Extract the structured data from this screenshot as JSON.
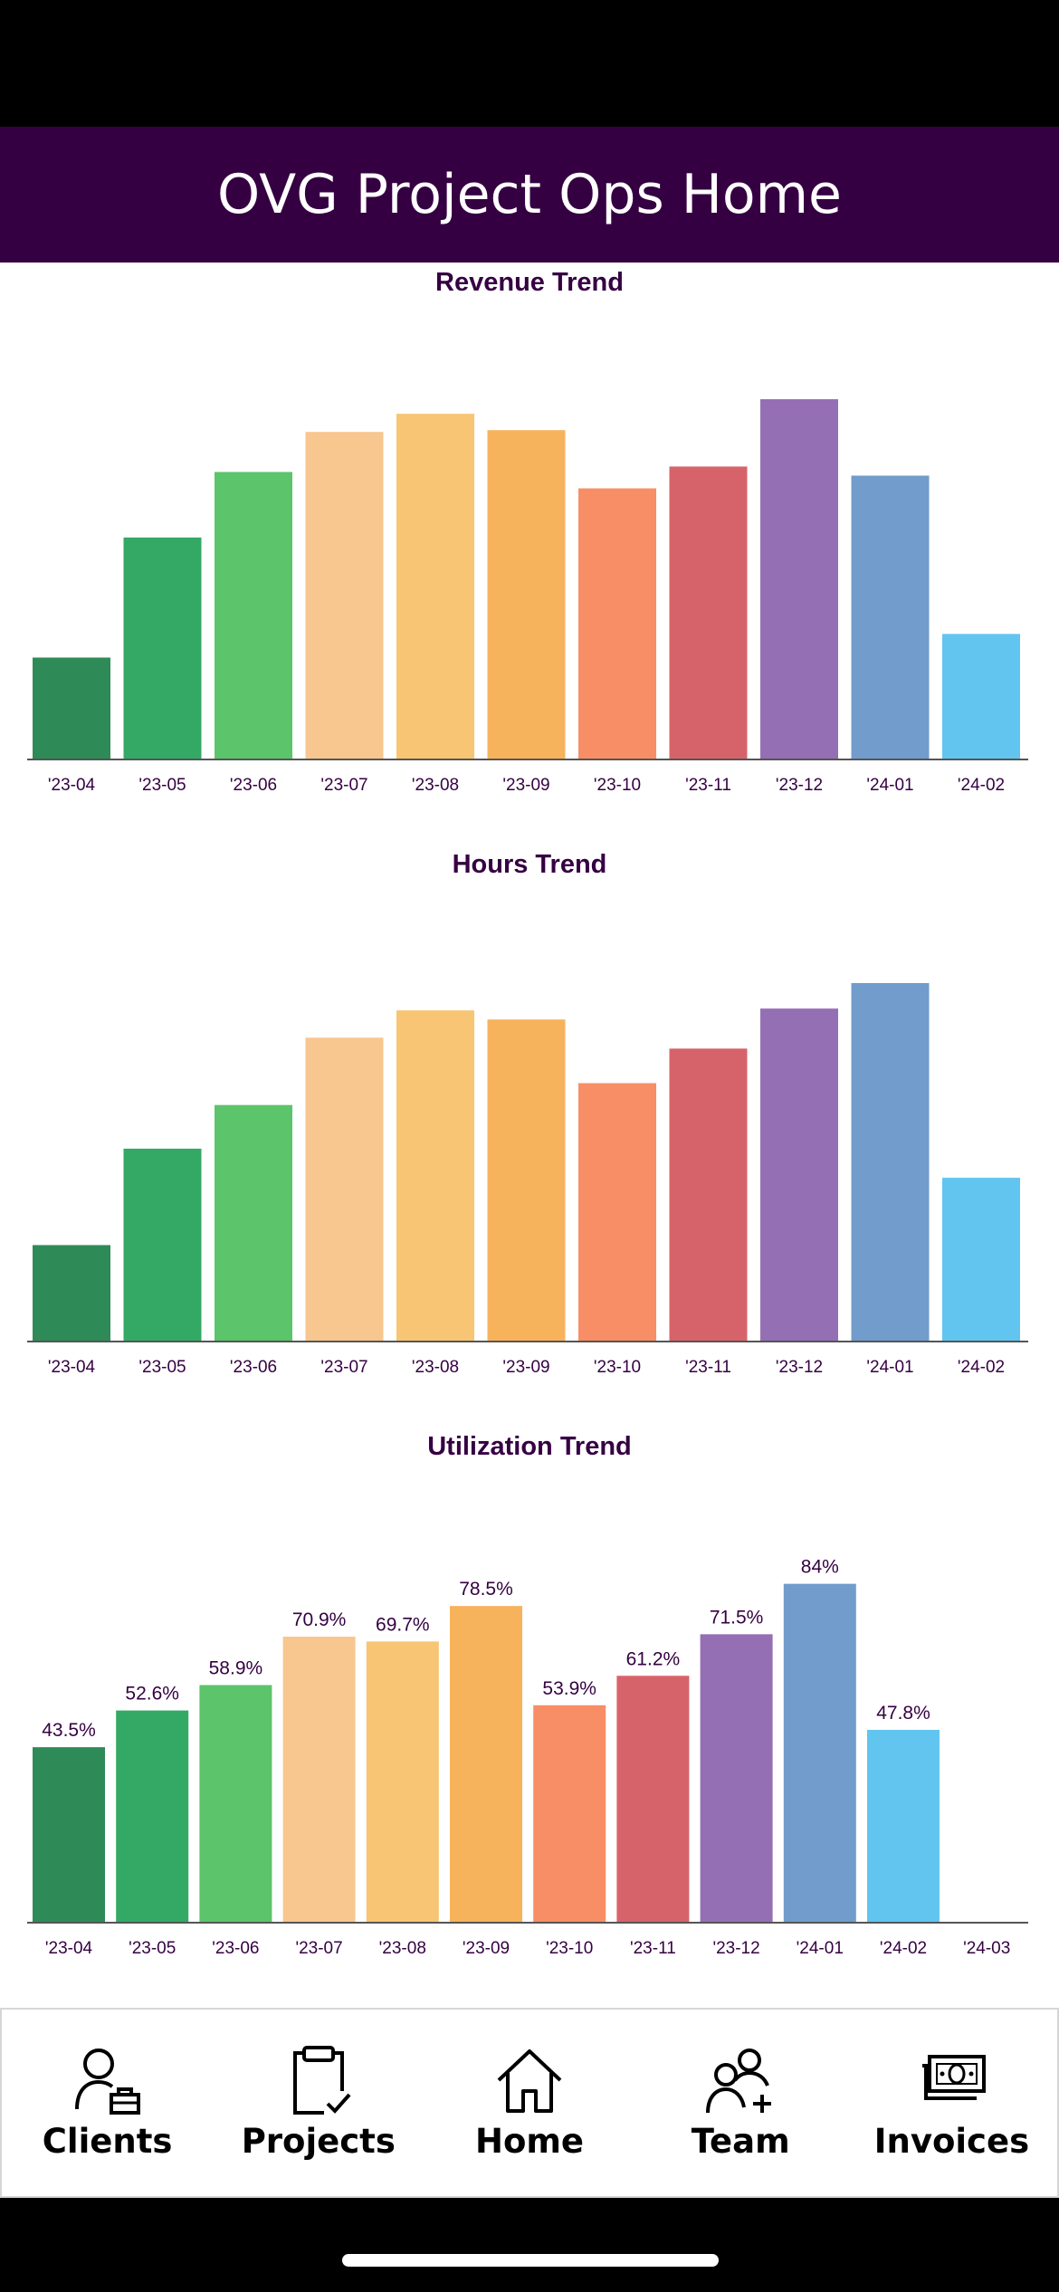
{
  "app": {
    "title": "OVG Project Ops Home"
  },
  "colors": {
    "header_bg": "#350042",
    "palette": [
      "#2e8b57",
      "#34a865",
      "#5cc46b",
      "#f8c68f",
      "#f7c573",
      "#f7b35b",
      "#f78e65",
      "#d7636a",
      "#956fb4",
      "#719ccb",
      "#62c5ef"
    ]
  },
  "chart_data": [
    {
      "type": "bar",
      "title": "Revenue Trend",
      "categories": [
        "'23-04",
        "'23-05",
        "'23-06",
        "'23-07",
        "'23-08",
        "'23-09",
        "'23-10",
        "'23-11",
        "'23-12",
        "'24-01",
        "'24-02"
      ],
      "values": [
        28,
        61,
        79,
        90,
        95,
        90.5,
        74.5,
        80.5,
        99,
        78,
        34.5
      ],
      "ylim": [
        0,
        100
      ],
      "data_labels": false
    },
    {
      "type": "bar",
      "title": "Hours Trend",
      "categories": [
        "'23-04",
        "'23-05",
        "'23-06",
        "'23-07",
        "'23-08",
        "'23-09",
        "'23-10",
        "'23-11",
        "'23-12",
        "'24-01",
        "'24-02"
      ],
      "values": [
        26.5,
        53,
        65,
        83.5,
        91,
        88.5,
        71,
        80.5,
        91.5,
        98.5,
        45
      ],
      "ylim": [
        0,
        100
      ],
      "data_labels": false
    },
    {
      "type": "bar",
      "title": "Utilization Trend",
      "categories": [
        "'23-04",
        "'23-05",
        "'23-06",
        "'23-07",
        "'23-08",
        "'23-09",
        "'23-10",
        "'23-11",
        "'23-12",
        "'24-01",
        "'24-02",
        "'24-03"
      ],
      "values": [
        43.5,
        52.6,
        58.9,
        70.9,
        69.7,
        78.5,
        53.9,
        61.2,
        71.5,
        84,
        47.8,
        null
      ],
      "labels": [
        "43.5%",
        "52.6%",
        "58.9%",
        "70.9%",
        "69.7%",
        "78.5%",
        "53.9%",
        "61.2%",
        "71.5%",
        "84%",
        "47.8%",
        ""
      ],
      "ylim": [
        0,
        92
      ],
      "data_labels": true
    }
  ],
  "tab_bar": {
    "items": [
      {
        "label": "Clients",
        "icon": "clients-icon"
      },
      {
        "label": "Projects",
        "icon": "projects-icon"
      },
      {
        "label": "Home",
        "icon": "home-icon"
      },
      {
        "label": "Team",
        "icon": "team-icon"
      },
      {
        "label": "Invoices",
        "icon": "invoices-icon"
      }
    ]
  }
}
